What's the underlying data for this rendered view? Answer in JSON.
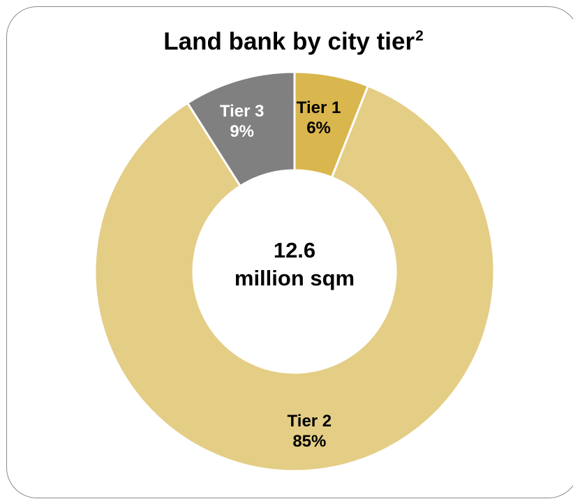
{
  "chart_data": {
    "type": "pie",
    "donut": true,
    "title": "Land bank by city tier",
    "title_superscript": "2",
    "center_label": {
      "value": "12.6",
      "unit": "million sqm"
    },
    "slices": [
      {
        "label": "Tier 1",
        "percent_label": "6%",
        "value": 6,
        "color": "#DAB64E",
        "label_color": "#000000"
      },
      {
        "label": "Tier 2",
        "percent_label": "85%",
        "value": 85,
        "color": "#E4CD85",
        "label_color": "#000000"
      },
      {
        "label": "Tier 3",
        "percent_label": "9%",
        "value": 9,
        "color": "#808080",
        "label_color": "#FFFFFF"
      }
    ]
  }
}
